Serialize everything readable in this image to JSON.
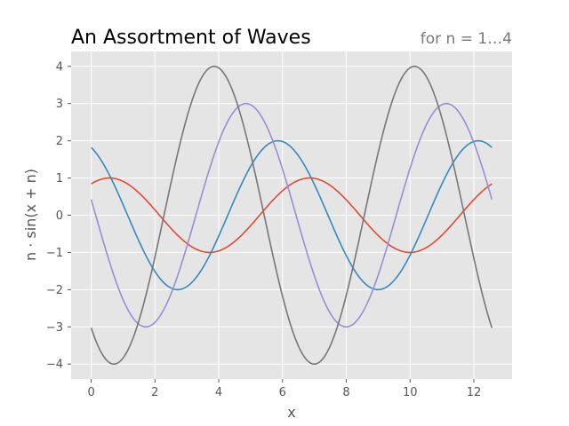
{
  "chart_data": {
    "type": "line",
    "title": "An Assortment of Waves",
    "subtitle": "for n = 1…4",
    "xlabel": "x",
    "ylabel": "n · sin(x + n)",
    "xlim": [
      -0.63,
      13.2
    ],
    "ylim": [
      -4.4,
      4.4
    ],
    "xticks": [
      0,
      2,
      4,
      6,
      8,
      10,
      12
    ],
    "yticks": [
      -4,
      -3,
      -2,
      -1,
      0,
      1,
      2,
      3,
      4
    ],
    "grid": true,
    "x_range": [
      0,
      12.566
    ],
    "series": [
      {
        "amplitude": 1,
        "phase": 1,
        "color": "#E24A33",
        "x": [
          0,
          0.57,
          2.14,
          3.71,
          5.28,
          6.85,
          8.42,
          9.99,
          11.56,
          12.57
        ],
        "values": [
          0.84,
          1.0,
          0.0,
          -1.0,
          0.0,
          1.0,
          0.0,
          -1.0,
          0.0,
          0.84
        ]
      },
      {
        "amplitude": 2,
        "phase": 2,
        "color": "#348ABD",
        "x": [
          0,
          1.14,
          2.71,
          4.28,
          5.85,
          7.42,
          8.99,
          10.56,
          12.13,
          12.57
        ],
        "values": [
          1.82,
          0.0,
          -2.0,
          0.0,
          2.0,
          0.0,
          -2.0,
          0.0,
          2.0,
          1.82
        ]
      },
      {
        "amplitude": 3,
        "phase": 3,
        "color": "#988ED5",
        "x": [
          0,
          0.14,
          1.71,
          3.28,
          4.85,
          6.42,
          7.99,
          9.56,
          11.14,
          12.57
        ],
        "values": [
          0.42,
          0.0,
          -3.0,
          0.0,
          3.0,
          0.0,
          -3.0,
          0.0,
          3.0,
          0.42
        ]
      },
      {
        "amplitude": 4,
        "phase": 4,
        "color": "#777777",
        "x": [
          0,
          0.71,
          2.28,
          3.85,
          5.42,
          6.99,
          8.57,
          10.14,
          11.71,
          12.57
        ],
        "values": [
          -3.03,
          -4.0,
          0.0,
          4.0,
          0.0,
          -4.0,
          0.0,
          4.0,
          0.0,
          -3.03
        ]
      }
    ]
  }
}
